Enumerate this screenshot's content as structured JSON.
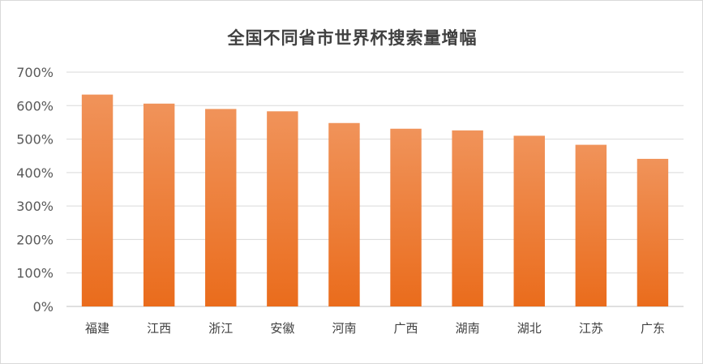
{
  "chart_data": {
    "type": "bar",
    "title": "全国不同省市世界杯搜索量增幅",
    "xlabel": "",
    "ylabel": "",
    "categories": [
      "福建",
      "江西",
      "浙江",
      "安徽",
      "河南",
      "广西",
      "湖南",
      "湖北",
      "江苏",
      "广东"
    ],
    "values": [
      633,
      606,
      590,
      583,
      548,
      531,
      526,
      510,
      483,
      441
    ],
    "ylim": [
      0,
      700
    ],
    "yticks": [
      0,
      100,
      200,
      300,
      400,
      500,
      600,
      700
    ],
    "ytick_labels": [
      "0%",
      "100%",
      "200%",
      "300%",
      "400%",
      "500%",
      "600%",
      "700%"
    ],
    "grid": true,
    "legend": "none",
    "bar_color_top": "#f0935a",
    "bar_color_bottom": "#ea6c1c"
  }
}
